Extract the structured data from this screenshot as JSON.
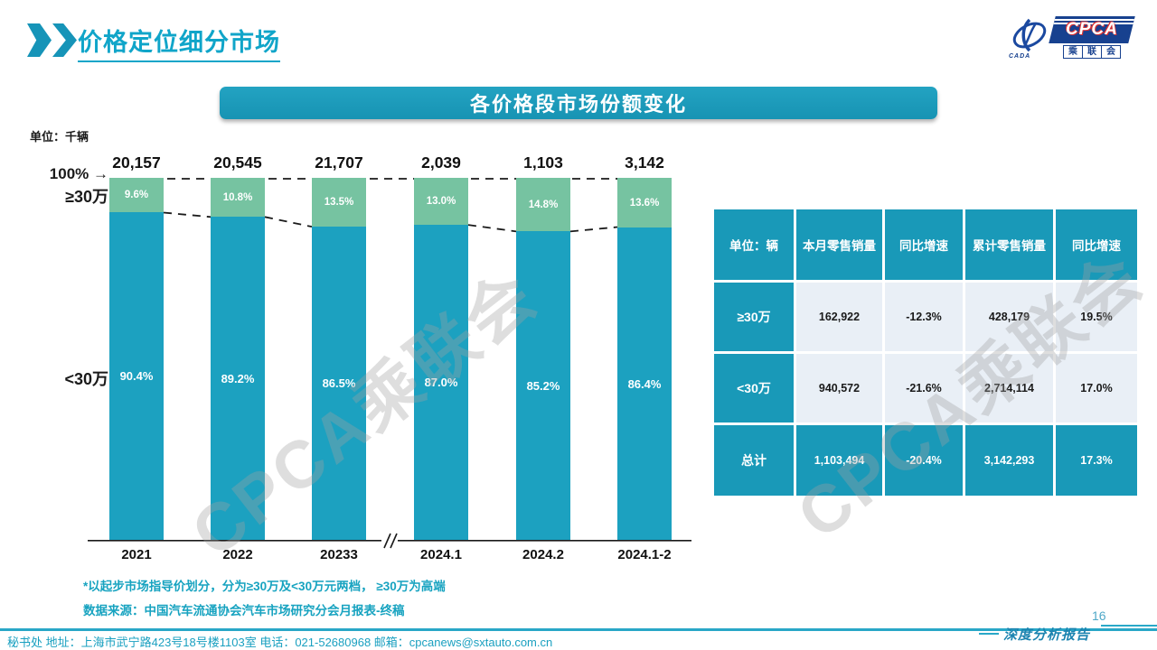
{
  "page": {
    "title": "价格定位细分市场",
    "page_number": "16",
    "report_label": "深度分析报告"
  },
  "logo": {
    "cpca": "CPCA",
    "cada": "CADA",
    "chinese_chars": [
      "乘",
      "联",
      "会"
    ]
  },
  "banner": {
    "title": "各价格段市场份额变化"
  },
  "chart": {
    "unit_label": "单位：千辆",
    "axis_100_label": "100% →",
    "ge30_label": "≥30万",
    "lt30_label": "<30万",
    "break_symbol": "//"
  },
  "chart_data": {
    "type": "bar",
    "subtype": "100%-stacked-column",
    "title": "各价格段市场份额变化",
    "unit": "千辆",
    "categories": [
      "2021",
      "2022",
      "20233",
      "2024.1",
      "2024.2",
      "2024.1-2"
    ],
    "totals": [
      "20,157",
      "20,545",
      "21,707",
      "2,039",
      "1,103",
      "3,142"
    ],
    "series": [
      {
        "name": "≥30万",
        "color": "#76C3A1",
        "values": [
          9.6,
          10.8,
          13.5,
          13.0,
          14.8,
          13.6
        ]
      },
      {
        "name": "<30万",
        "color": "#1CA1C0",
        "values": [
          90.4,
          89.2,
          86.5,
          87.0,
          85.2,
          86.4
        ]
      }
    ],
    "ylim": [
      0,
      100
    ],
    "axis_break_between": [
      "20233",
      "2024.1"
    ],
    "gridlines": "dashed 100% line and dashed connectors between segment boundaries"
  },
  "table": {
    "header": [
      "单位：辆",
      "本月零售销量",
      "同比增速",
      "累计零售销量",
      "同比增速"
    ],
    "rows": [
      {
        "label": "≥30万",
        "cells": [
          "162,922",
          "-12.3%",
          "428,179",
          "19.5%"
        ],
        "is_total": false
      },
      {
        "label": "<30万",
        "cells": [
          "940,572",
          "-21.6%",
          "2,714,114",
          "17.0%"
        ],
        "is_total": false
      },
      {
        "label": "总计",
        "cells": [
          "1,103,494",
          "-20.4%",
          "3,142,293",
          "17.3%"
        ],
        "is_total": true
      }
    ]
  },
  "footnotes": [
    "*以起步市场指导价划分，分为≥30万及<30万元两档，  ≥30万为高端",
    "数据来源：中国汽车流通协会汽车市场研究分会月报表-终稿"
  ],
  "footer": {
    "text": "秘书处   地址：上海市武宁路423号18号楼1103室   电话：021-52680968    邮箱：cpcanews@sxtauto.com.cn"
  },
  "watermark": "CPCA乘联会",
  "colors": {
    "teal": "#1A9EBD",
    "green": "#76C3A1",
    "banner_teal": "#1999B8",
    "light_cell": "#E9EFF6",
    "navy": "#17418F",
    "red_accent": "#D93030",
    "title_teal": "#10A5C9"
  }
}
